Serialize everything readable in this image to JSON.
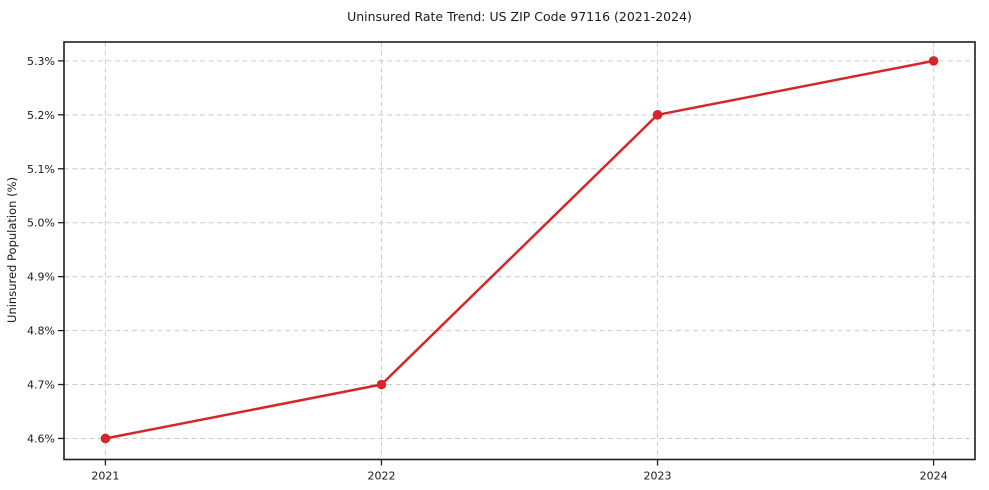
{
  "chart_data": {
    "type": "line",
    "title": "Uninsured Rate Trend: US ZIP Code 97116 (2021-2024)",
    "xlabel": "",
    "ylabel": "Uninsured Population (%)",
    "x": [
      2021,
      2022,
      2023,
      2024
    ],
    "values": [
      4.6,
      4.7,
      5.2,
      5.3
    ],
    "x_tick_labels": [
      "2021",
      "2022",
      "2023",
      "2024"
    ],
    "y_ticks": [
      4.6,
      4.7,
      4.8,
      4.9,
      5.0,
      5.1,
      5.2,
      5.3
    ],
    "y_tick_labels": [
      "4.6%",
      "4.7%",
      "4.8%",
      "4.9%",
      "5.0%",
      "5.1%",
      "5.2%",
      "5.3%"
    ],
    "xlim": [
      2020.85,
      2024.15
    ],
    "ylim": [
      4.561,
      5.335
    ],
    "grid": true,
    "grid_style": "dashed",
    "legend": false,
    "line_color": "#d62728",
    "grid_color": "#cccccc",
    "spine_color": "#1f1f1f",
    "text_color": "#1a1a1a",
    "marker": "circle"
  }
}
